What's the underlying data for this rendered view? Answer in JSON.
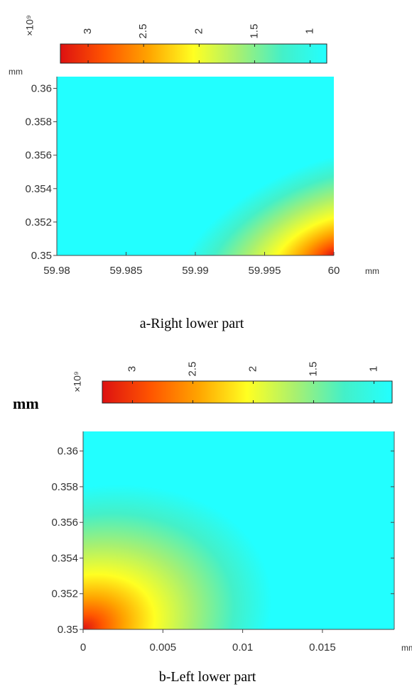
{
  "chart_data": [
    {
      "type": "heatmap",
      "caption": "a-Right lower part",
      "xlabel": "mm",
      "ylabel": "mm",
      "x_ticks": [
        "59.98",
        "59.985",
        "59.99",
        "59.995",
        "60"
      ],
      "x_tick_values": [
        59.98,
        59.985,
        59.99,
        59.995,
        60
      ],
      "y_ticks": [
        "0.36",
        "0.358",
        "0.356",
        "0.354",
        "0.352",
        "0.35"
      ],
      "y_tick_values": [
        0.36,
        0.358,
        0.356,
        0.354,
        0.352,
        0.35
      ],
      "xlim": [
        59.98,
        60
      ],
      "ylim": [
        0.35,
        0.3607
      ],
      "colorbar": {
        "exponent_label": "×10⁹",
        "ticks": [
          "3",
          "2.5",
          "2",
          "1.5",
          "1"
        ],
        "tick_values": [
          3,
          2.5,
          2,
          1.5,
          1
        ],
        "range": [
          0.85,
          3.25
        ],
        "colormap": [
          "#dd1111",
          "#ff5500",
          "#ffa500",
          "#ffff22",
          "#a8f070",
          "#44f0c8",
          "#22ffff"
        ]
      },
      "hot_corner": "bottom-right",
      "value_range": [
        1,
        3.2
      ]
    },
    {
      "type": "heatmap",
      "caption": "b-Left lower part",
      "xlabel": "mm",
      "ylabel": "mm",
      "x_ticks": [
        "0",
        "0.005",
        "0.01",
        "0.015"
      ],
      "x_tick_values": [
        0,
        0.005,
        0.01,
        0.015
      ],
      "y_ticks": [
        "0.36",
        "0.358",
        "0.356",
        "0.354",
        "0.352",
        "0.35"
      ],
      "y_tick_values": [
        0.36,
        0.358,
        0.356,
        0.354,
        0.352,
        0.35
      ],
      "xlim": [
        0,
        0.0195
      ],
      "ylim": [
        0.35,
        0.3611
      ],
      "colorbar": {
        "exponent_label": "×10⁹",
        "ticks": [
          "3",
          "2.5",
          "2",
          "1.5",
          "1"
        ],
        "tick_values": [
          3,
          2.5,
          2,
          1.5,
          1
        ],
        "range": [
          0.85,
          3.25
        ],
        "colormap": [
          "#dd1111",
          "#ff5500",
          "#ffa500",
          "#ffff22",
          "#a8f070",
          "#44f0c8",
          "#22ffff"
        ]
      },
      "hot_corner": "bottom-left",
      "value_range": [
        1,
        3.2
      ]
    }
  ]
}
